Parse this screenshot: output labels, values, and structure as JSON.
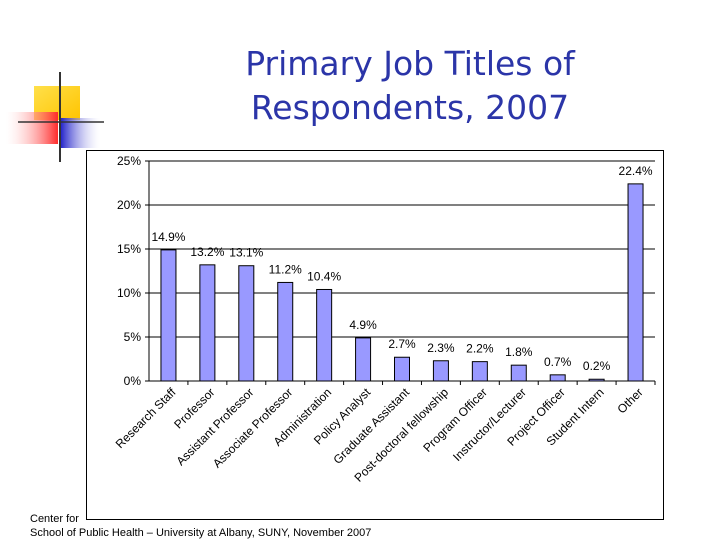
{
  "slide": {
    "title_line1": "Primary Job Titles of",
    "title_line2": "Respondents, 2007",
    "footer_line1": "Center for",
    "footer_line2": "School of Public Health – University at Albany, SUNY, November 2007"
  },
  "colors": {
    "title": "#2b35a8",
    "bar_fill": "#9999ff",
    "bar_stroke": "#000000",
    "logo_yellow": "#ffd21f",
    "logo_red": "#ff3b3b",
    "logo_blue": "#2424d0"
  },
  "chart_data": {
    "type": "bar",
    "title": "",
    "xlabel": "",
    "ylabel": "",
    "categories": [
      "Research Staff",
      "Professor",
      "Assistant Professor",
      "Associate Professor",
      "Administration",
      "Policy Analyst",
      "Graduate Assistant",
      "Post-doctoral fellowship",
      "Program Officer",
      "Instructor/Lecturer",
      "Project Officer",
      "Student Intern",
      "Other"
    ],
    "values": [
      14.9,
      13.2,
      13.1,
      11.2,
      10.4,
      4.9,
      2.7,
      2.3,
      2.2,
      1.8,
      0.7,
      0.2,
      22.4
    ],
    "data_labels": [
      "14.9%",
      "13.2%",
      "13.1%",
      "11.2%",
      "10.4%",
      "4.9%",
      "2.7%",
      "2.3%",
      "2.2%",
      "1.8%",
      "0.7%",
      "0.2%",
      "22.4%"
    ],
    "ylim": [
      0,
      25
    ],
    "yticks": [
      0,
      5,
      10,
      15,
      20,
      25
    ],
    "ytick_labels": [
      "0%",
      "5%",
      "10%",
      "15%",
      "20%",
      "25%"
    ],
    "grid": true,
    "legend": "none"
  }
}
